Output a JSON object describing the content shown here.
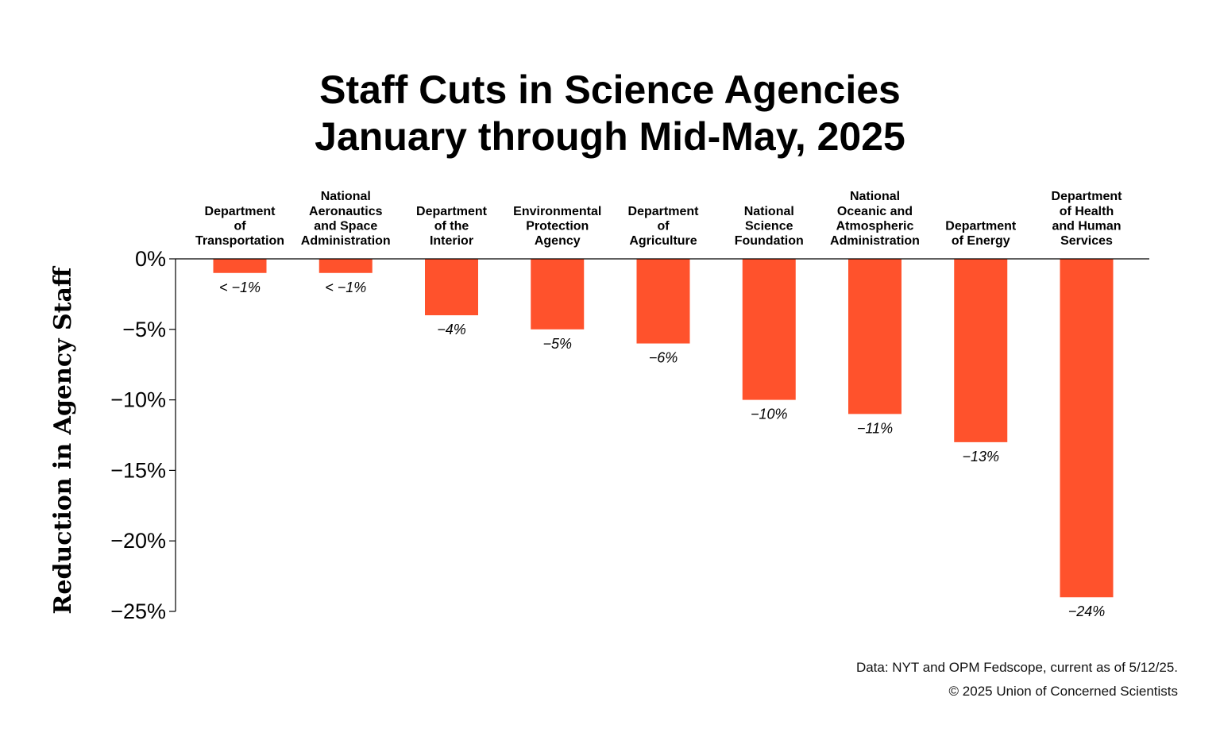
{
  "title_lines": [
    "Staff Cuts in Science Agencies",
    "January through Mid-May, 2025"
  ],
  "colors": {
    "bar": "#ff522c",
    "axis": "#000000",
    "text": "#000000"
  },
  "chart_data": {
    "type": "bar",
    "title": "Staff Cuts in Science Agencies January through Mid-May, 2025",
    "xlabel": "",
    "ylabel": "Reduction in Agency Staff",
    "ylim": [
      -25,
      0
    ],
    "yticks": [
      0,
      -5,
      -10,
      -15,
      -20,
      -25
    ],
    "ytick_labels": [
      "0%",
      "−5%",
      "−10%",
      "−15%",
      "−20%",
      "−25%"
    ],
    "categories": [
      [
        "Department",
        "of",
        "Transportation"
      ],
      [
        "National",
        "Aeronautics",
        "and Space",
        "Administration"
      ],
      [
        "Department",
        "of the",
        "Interior"
      ],
      [
        "Environmental",
        "Protection",
        "Agency"
      ],
      [
        "Department",
        "of",
        "Agriculture"
      ],
      [
        "National",
        "Science",
        "Foundation"
      ],
      [
        "National",
        "Oceanic and",
        "Atmospheric",
        "Administration"
      ],
      [
        "Department",
        "of Energy"
      ],
      [
        "Department",
        "of Health",
        "and Human",
        "Services"
      ]
    ],
    "values": [
      -1,
      -1,
      -4,
      -5,
      -6,
      -10,
      -11,
      -13,
      -24
    ],
    "data_labels": [
      "< −1%",
      "< −1%",
      "−4%",
      "−5%",
      "−6%",
      "−10%",
      "−11%",
      "−13%",
      "−24%"
    ],
    "grid": false,
    "legend": "none"
  },
  "source": {
    "line1": "Data: NYT and OPM Fedscope, current as of 5/12/25.",
    "line2": "© 2025 Union of Concerned Scientists"
  }
}
